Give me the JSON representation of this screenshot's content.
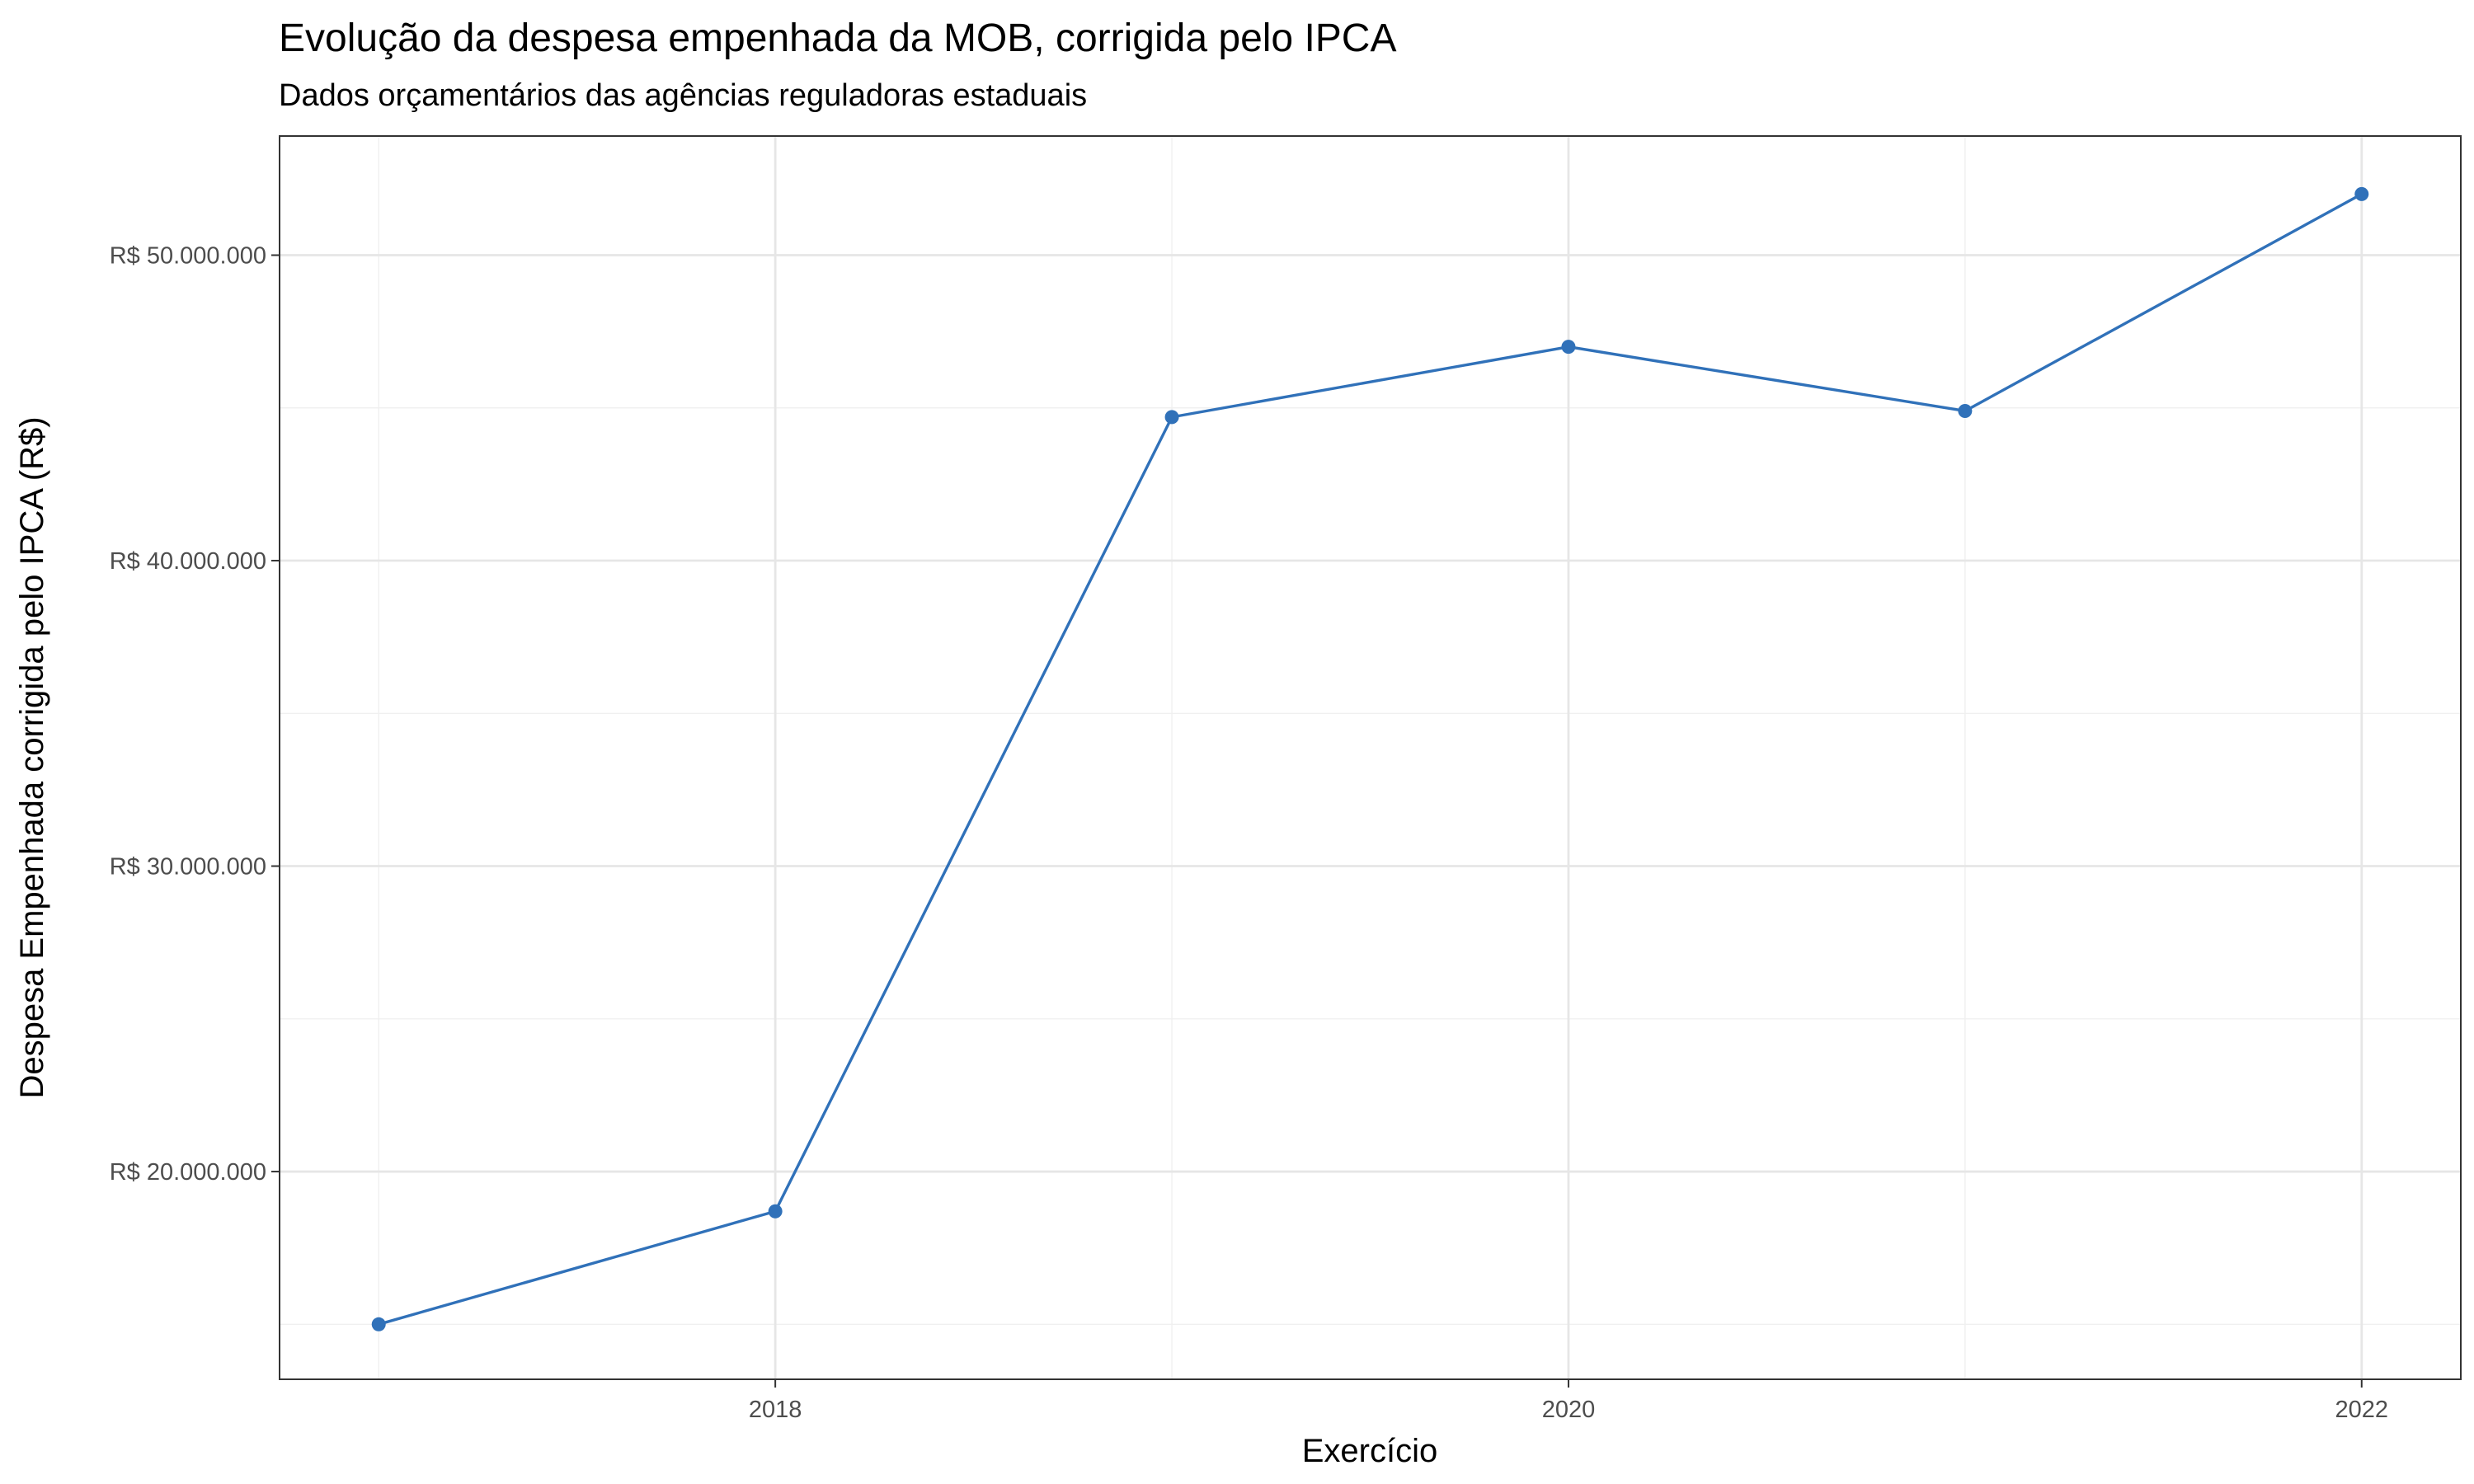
{
  "title": "Evolução da despesa empenhada da MOB, corrigida pelo IPCA",
  "subtitle": "Dados orçamentários das agências reguladoras estaduais",
  "colors": {
    "line": "#3071b9",
    "point": "#3071b9"
  },
  "chart_data": {
    "type": "line",
    "title": "Evolução da despesa empenhada da MOB, corrigida pelo IPCA",
    "subtitle": "Dados orçamentários das agências reguladoras estaduais",
    "xlabel": "Exercício",
    "ylabel": "Despesa Empenhada corrigida pelo IPCA (R$)",
    "x": [
      2017,
      2018,
      2019,
      2020,
      2021,
      2022
    ],
    "series": [
      {
        "values": [
          15000000,
          18700000,
          44700000,
          47000000,
          44900000,
          52000000
        ]
      }
    ],
    "xlim": [
      2016.75,
      2022.25
    ],
    "ylim": [
      13200000,
      53900000
    ],
    "x_ticks": [
      2018,
      2020,
      2022
    ],
    "x_tick_labels": [
      "2018",
      "2020",
      "2022"
    ],
    "y_ticks": [
      20000000,
      30000000,
      40000000,
      50000000
    ],
    "y_tick_labels": [
      "R$ 20.000.000",
      "R$ 30.000.000",
      "R$ 40.000.000",
      "R$ 50.000.000"
    ],
    "grid": true,
    "legend": "none"
  }
}
